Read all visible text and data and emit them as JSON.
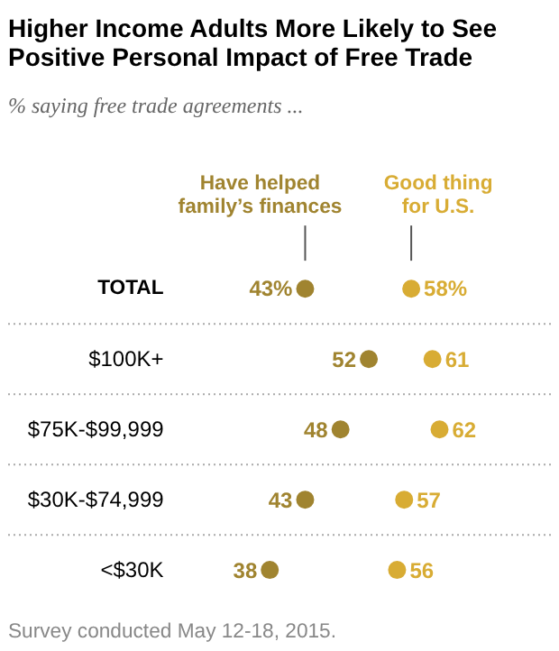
{
  "chart_data": {
    "type": "scatter",
    "orientation": "horizontal",
    "marker": "circle",
    "title": "Higher Income Adults More Likely to See Positive Personal Impact of Free Trade",
    "subtitle": "% saying free trade agreements ...",
    "categories": [
      "TOTAL",
      "$100K+",
      "$75K-$99,999",
      "$30K-$74,999",
      "<$30K"
    ],
    "series": [
      {
        "name": "Have helped family’s finances",
        "color": "#a08430",
        "values": [
          43,
          52,
          48,
          43,
          38
        ],
        "value_labels": [
          "43%",
          "52",
          "48",
          "43",
          "38"
        ]
      },
      {
        "name": "Good thing for U.S.",
        "color": "#d8ac34",
        "values": [
          58,
          61,
          62,
          57,
          56
        ],
        "value_labels": [
          "58%",
          "61",
          "62",
          "57",
          "56"
        ]
      }
    ],
    "annotations": [
      "Survey conducted May 12-18, 2015."
    ]
  }
}
